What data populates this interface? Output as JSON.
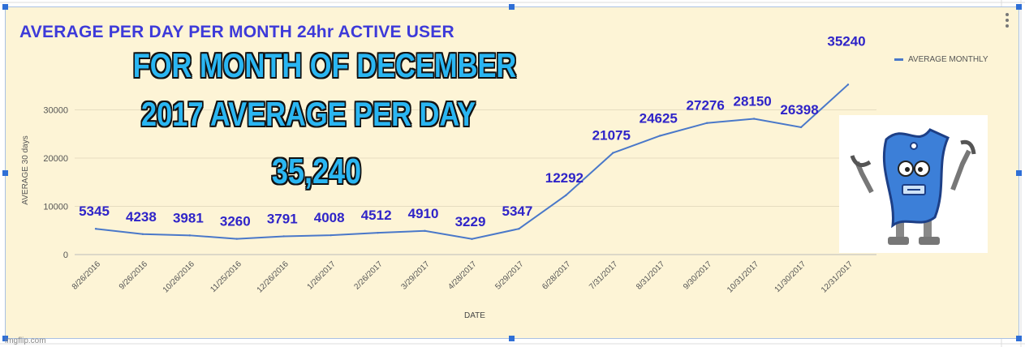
{
  "chart_data": {
    "type": "line",
    "title": "AVERAGE PER DAY PER MONTH 24hr  ACTIVE USER",
    "xlabel": "DATE",
    "ylabel": "AVERAGE 30 days",
    "ylim": [
      0,
      40000
    ],
    "yticks": [
      "0",
      "10000",
      "20000",
      "30000"
    ],
    "legend_position": "top-right",
    "grid": true,
    "x": [
      "8/26/2016",
      "9/26/2016",
      "10/26/2016",
      "11/25/2016",
      "12/26/2016",
      "1/26/2017",
      "2/26/2017",
      "3/29/2017",
      "4/28/2017",
      "5/29/2017",
      "6/28/2017",
      "7/31/2017",
      "8/31/2017",
      "9/30/2017",
      "10/31/2017",
      "11/30/2017",
      "12/31/2017"
    ],
    "series": [
      {
        "name": "AVERAGE  MONTHLY",
        "color": "#4a78c9",
        "values": [
          5345,
          4238,
          3981,
          3260,
          3791,
          4008,
          4512,
          4910,
          3229,
          5347,
          12292,
          21075,
          24625,
          27276,
          28150,
          26398,
          35240
        ],
        "data_labels": [
          "5345",
          "4238",
          "3981",
          "3260",
          "3791",
          "4008",
          "4512",
          "4910",
          "3229",
          "5347",
          "12292",
          "21075",
          "24625",
          "27276",
          "28150",
          "26398",
          "35240"
        ]
      }
    ],
    "data_label_color": "#2f24c8"
  },
  "overlay": {
    "line1": "FOR  MONTH  OF  DECEMBER",
    "line2": "2017  AVERAGE  PER DAY",
    "line3": "35,240",
    "color": "#2ab6f2",
    "outline_color": "#111111"
  },
  "legend_label": "AVERAGE  MONTHLY",
  "watermark": "imgflip.com",
  "mascot_icon": "robot-mascot-icon"
}
